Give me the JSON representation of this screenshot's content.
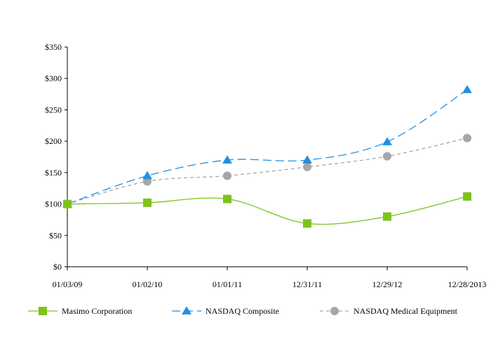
{
  "chart_data": {
    "type": "line",
    "x": [
      "01/03/09",
      "01/02/10",
      "01/01/11",
      "12/31/11",
      "12/29/12",
      "12/28/2013"
    ],
    "ylim": [
      0,
      350
    ],
    "yticks": [
      0,
      50,
      100,
      150,
      200,
      250,
      300,
      350
    ],
    "ytick_labels": [
      "$0",
      "$50",
      "$100",
      "$150",
      "$200",
      "$250",
      "$300",
      "$350"
    ],
    "grid": false,
    "legend_position": "bottom",
    "series": [
      {
        "name": "Masimo Corporation",
        "values": [
          100,
          102,
          108,
          69,
          80,
          112
        ],
        "color": "#7dc31e",
        "marker": "square",
        "line": "solid"
      },
      {
        "name": "NASDAQ Composite",
        "values": [
          100,
          145,
          170,
          170,
          199,
          282
        ],
        "color": "#1e90e6",
        "marker": "triangle",
        "line": "dashed"
      },
      {
        "name": "NASDAQ Medical Equipment",
        "values": [
          100,
          136,
          145,
          159,
          176,
          205
        ],
        "color": "#a6a6a6",
        "marker": "circle",
        "line": "dashed"
      }
    ]
  }
}
